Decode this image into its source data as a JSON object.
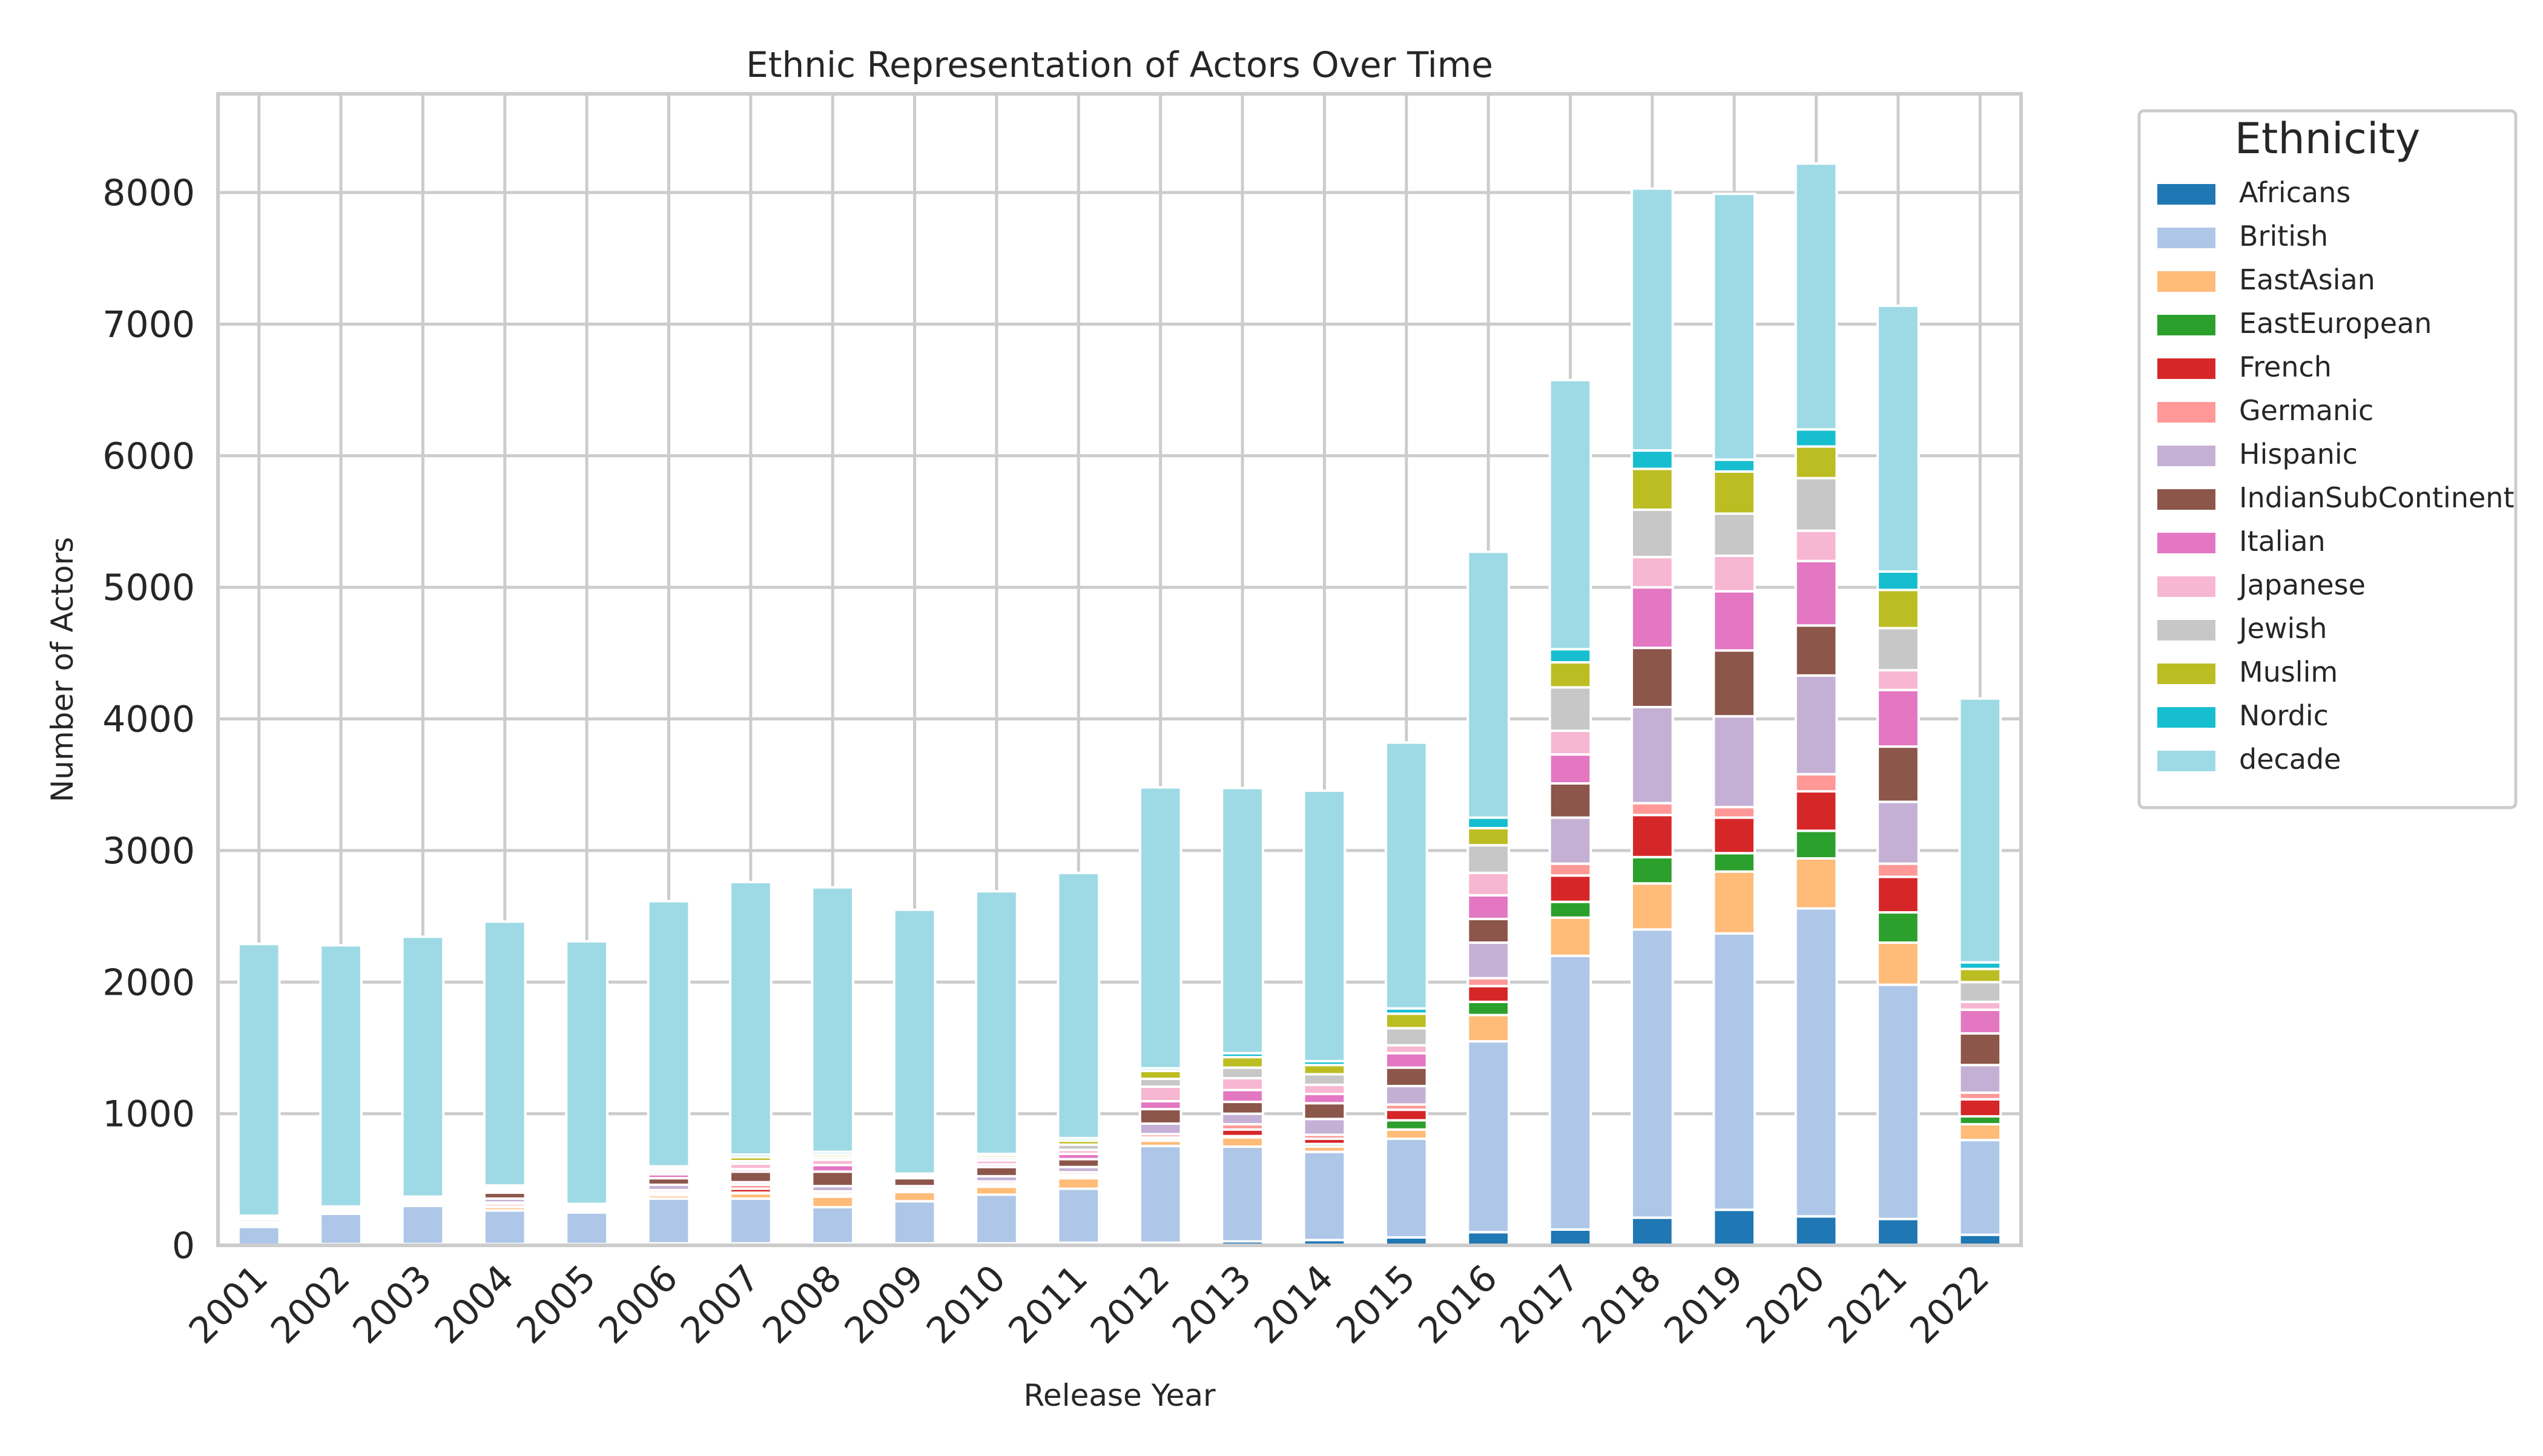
{
  "chart_data": {
    "type": "bar",
    "stacked": true,
    "title": "Ethnic Representation of Actors Over Time",
    "xlabel": "Release Year",
    "ylabel": "Number of Actors",
    "ylim": [
      0,
      8750
    ],
    "yticks": [
      0,
      1000,
      2000,
      3000,
      4000,
      5000,
      6000,
      7000,
      8000
    ],
    "grid": true,
    "legend": {
      "title": "Ethnicity",
      "placement": "outside-top-right"
    },
    "categories": [
      "2001",
      "2002",
      "2003",
      "2004",
      "2005",
      "2006",
      "2007",
      "2008",
      "2009",
      "2010",
      "2011",
      "2012",
      "2013",
      "2014",
      "2015",
      "2016",
      "2017",
      "2018",
      "2019",
      "2020",
      "2021",
      "2022"
    ],
    "series": [
      {
        "name": "Africans",
        "color": "#1f77b4",
        "values": [
          5,
          10,
          10,
          10,
          10,
          15,
          15,
          15,
          15,
          15,
          20,
          20,
          30,
          40,
          60,
          100,
          120,
          210,
          270,
          220,
          200,
          80
        ]
      },
      {
        "name": "British",
        "color": "#aec7e8",
        "values": [
          135,
          230,
          290,
          255,
          240,
          340,
          340,
          275,
          320,
          370,
          410,
          735,
          720,
          670,
          750,
          1450,
          2080,
          2190,
          2100,
          2340,
          1780,
          720
        ]
      },
      {
        "name": "EastAsian",
        "color": "#ffbb78",
        "values": [
          10,
          5,
          5,
          25,
          5,
          25,
          40,
          80,
          70,
          60,
          80,
          40,
          70,
          40,
          70,
          200,
          290,
          350,
          470,
          380,
          320,
          120
        ]
      },
      {
        "name": "EastEuropean",
        "color": "#2ca02c",
        "values": [
          5,
          5,
          5,
          5,
          5,
          5,
          5,
          10,
          5,
          10,
          10,
          10,
          10,
          20,
          70,
          100,
          120,
          200,
          140,
          210,
          230,
          60
        ]
      },
      {
        "name": "French",
        "color": "#d62728",
        "values": [
          10,
          5,
          5,
          20,
          5,
          15,
          30,
          10,
          10,
          10,
          15,
          15,
          50,
          40,
          80,
          120,
          200,
          320,
          270,
          300,
          270,
          130
        ]
      },
      {
        "name": "Germanic",
        "color": "#ff9896",
        "values": [
          10,
          5,
          5,
          10,
          5,
          20,
          30,
          20,
          10,
          20,
          20,
          25,
          40,
          30,
          40,
          60,
          90,
          90,
          80,
          130,
          100,
          50
        ]
      },
      {
        "name": "Hispanic",
        "color": "#c5b0d5",
        "values": [
          20,
          5,
          10,
          30,
          10,
          40,
          20,
          40,
          20,
          40,
          40,
          80,
          80,
          120,
          140,
          270,
          350,
          730,
          690,
          750,
          470,
          210
        ]
      },
      {
        "name": "IndianSubContinent",
        "color": "#8c564b",
        "values": [
          5,
          5,
          15,
          45,
          10,
          50,
          80,
          110,
          60,
          70,
          60,
          110,
          90,
          120,
          140,
          180,
          260,
          450,
          500,
          380,
          420,
          240
        ]
      },
      {
        "name": "Italian",
        "color": "#e377c2",
        "values": [
          5,
          5,
          5,
          15,
          5,
          30,
          20,
          50,
          10,
          20,
          40,
          60,
          90,
          70,
          110,
          180,
          220,
          460,
          450,
          490,
          430,
          180
        ]
      },
      {
        "name": "Japanese",
        "color": "#f7b6d2",
        "values": [
          5,
          5,
          5,
          10,
          5,
          20,
          40,
          40,
          10,
          30,
          30,
          110,
          90,
          70,
          60,
          170,
          180,
          230,
          270,
          230,
          150,
          60
        ]
      },
      {
        "name": "Jewish",
        "color": "#c7c7c7",
        "values": [
          5,
          5,
          5,
          10,
          5,
          20,
          20,
          20,
          5,
          20,
          40,
          60,
          80,
          80,
          130,
          210,
          330,
          360,
          320,
          400,
          320,
          150
        ]
      },
      {
        "name": "Muslim",
        "color": "#bcbd22",
        "values": [
          5,
          5,
          5,
          10,
          5,
          10,
          30,
          20,
          5,
          20,
          30,
          60,
          80,
          70,
          110,
          130,
          190,
          310,
          320,
          240,
          290,
          100
        ]
      },
      {
        "name": "Nordic",
        "color": "#17becf",
        "values": [
          5,
          5,
          5,
          10,
          5,
          10,
          20,
          20,
          5,
          10,
          20,
          20,
          30,
          30,
          40,
          80,
          100,
          140,
          90,
          130,
          140,
          50
        ]
      },
      {
        "name": "decade",
        "color": "#9edae5",
        "values": [
          2065,
          1985,
          1975,
          2005,
          1995,
          2015,
          2070,
          2010,
          2005,
          1995,
          2015,
          2135,
          2015,
          2055,
          2020,
          2020,
          2045,
          1990,
          2020,
          2020,
          2020,
          2005
        ]
      }
    ]
  }
}
